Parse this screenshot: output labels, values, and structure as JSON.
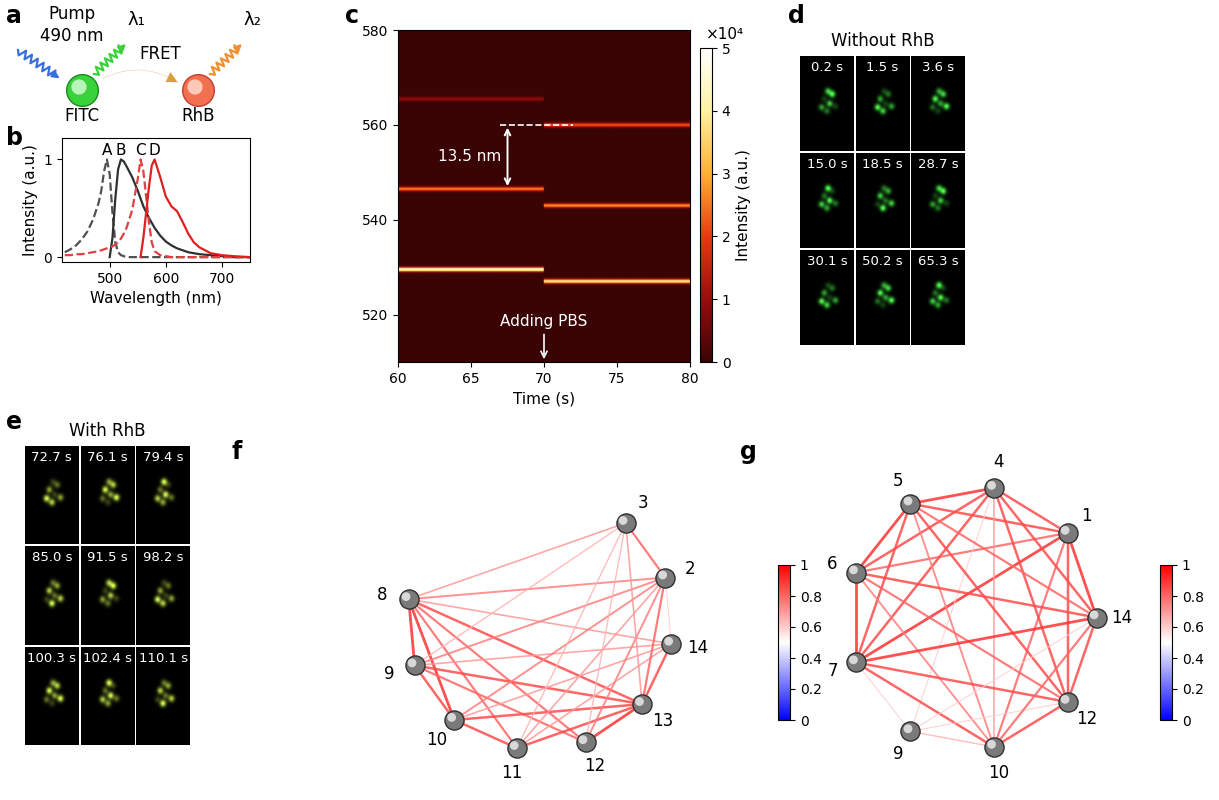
{
  "diagram": {
    "panel": "a",
    "type": "diagram",
    "pump": "Pump",
    "pump_wavelength": "490 nm",
    "donor": "FITC",
    "acceptor": "RhB",
    "transfer": "FRET",
    "emission_1": "λ₁",
    "emission_2": "λ₂"
  },
  "chart_data": [
    {
      "panel": "b",
      "type": "line",
      "xlabel": "Wavelength (nm)",
      "ylabel": "Intensity (a.u.)",
      "x": [
        420,
        430,
        440,
        450,
        460,
        470,
        480,
        485,
        490,
        495,
        500,
        505,
        510,
        515,
        520,
        525,
        530,
        540,
        550,
        555,
        560,
        570,
        575,
        580,
        590,
        600,
        610,
        620,
        630,
        640,
        650,
        660,
        680,
        700,
        720,
        750
      ],
      "series": [
        {
          "name": "A",
          "color": "#505050",
          "line_style": "dashed",
          "values": [
            0.05,
            0.08,
            0.12,
            0.18,
            0.26,
            0.38,
            0.55,
            0.68,
            0.88,
            1.0,
            0.85,
            0.45,
            0.15,
            0.05,
            0.02,
            0.01,
            0,
            0,
            0,
            0,
            0,
            0,
            0,
            0,
            0,
            0,
            0,
            0,
            0,
            0,
            0,
            0,
            0,
            0,
            0,
            0
          ]
        },
        {
          "name": "B",
          "color": "#303030",
          "line_style": "solid",
          "values": [
            null,
            null,
            null,
            null,
            null,
            null,
            null,
            null,
            null,
            null,
            0,
            0.2,
            0.6,
            0.9,
            1.0,
            0.98,
            0.93,
            0.82,
            0.68,
            0.6,
            0.52,
            0.4,
            0.35,
            0.3,
            0.22,
            0.16,
            0.12,
            0.09,
            0.07,
            0.05,
            0.04,
            0.03,
            0.02,
            0.01,
            0,
            0
          ]
        },
        {
          "name": "C",
          "color": "#e04040",
          "line_style": "dashed",
          "values": [
            0.02,
            0.02,
            0.03,
            0.03,
            0.04,
            0.05,
            0.06,
            0.07,
            0.08,
            0.09,
            0.1,
            0.11,
            0.13,
            0.15,
            0.19,
            0.24,
            0.3,
            0.48,
            0.8,
            1.0,
            0.88,
            0.35,
            0.15,
            0.06,
            0.02,
            0.01,
            0,
            0,
            0,
            0,
            0,
            0,
            0,
            0,
            0,
            0
          ]
        },
        {
          "name": "D",
          "color": "#e02020",
          "line_style": "solid",
          "values": [
            null,
            null,
            null,
            null,
            null,
            null,
            null,
            null,
            null,
            null,
            null,
            null,
            null,
            null,
            null,
            null,
            null,
            null,
            null,
            0,
            0.2,
            0.72,
            0.94,
            1.0,
            0.82,
            0.62,
            0.52,
            0.47,
            0.36,
            0.24,
            0.15,
            0.1,
            0.04,
            0.02,
            0.01,
            0
          ]
        }
      ],
      "xlim": [
        415,
        750
      ],
      "xticks": [
        500,
        600,
        700
      ],
      "ylim": [
        -0.05,
        1.22
      ],
      "yticks": [
        0,
        1
      ]
    },
    {
      "panel": "c",
      "type": "heatmap",
      "xlabel": "Time (s)",
      "xlim": [
        60,
        80
      ],
      "xticks": [
        60,
        65,
        70,
        75,
        80
      ],
      "ylim": [
        510,
        580
      ],
      "yticks": [
        520,
        540,
        560,
        580
      ],
      "event_time": 70,
      "peaks": [
        {
          "before": 529.5,
          "after": 527.0,
          "intensity_before": 48000,
          "intensity_after": 40000
        },
        {
          "before": 546.5,
          "after": 543.0,
          "intensity_before": 26000,
          "intensity_after": 28000
        },
        {
          "before": 565.5,
          "after": 560.0,
          "intensity_before": 9000,
          "intensity_after": 22000
        }
      ],
      "shift_label": "13.5 nm",
      "event_label": "Adding PBS",
      "colorbar": {
        "label": "Intensity (a.u.)",
        "range": [
          0,
          50000
        ],
        "multiplier": "×10⁴",
        "ticks": [
          {
            "value": 0,
            "label": "0"
          },
          {
            "value": 10000,
            "label": "1"
          },
          {
            "value": 20000,
            "label": "2"
          },
          {
            "value": 30000,
            "label": "3"
          },
          {
            "value": 40000,
            "label": "4"
          },
          {
            "value": 50000,
            "label": "5"
          }
        ]
      }
    }
  ],
  "image_grids": [
    {
      "panel": "d",
      "type": "image_grid",
      "title": "Without RhB",
      "color": "#4cff4c",
      "frames": [
        "0.2 s",
        "1.5 s",
        "3.6 s",
        "15.0 s",
        "18.5 s",
        "28.7 s",
        "30.1 s",
        "50.2 s",
        "65.3 s"
      ]
    },
    {
      "panel": "e",
      "type": "image_grid",
      "title": "With RhB",
      "color": "#d8ff50",
      "frames": [
        "72.7 s",
        "76.1 s",
        "79.4 s",
        "85.0 s",
        "91.5 s",
        "98.2 s",
        "100.3 s",
        "102.4 s",
        "110.1 s"
      ]
    }
  ],
  "networks": [
    {
      "panel": "f",
      "type": "network",
      "nodes": [
        "3",
        "2",
        "14",
        "13",
        "12",
        "11",
        "10",
        "9",
        "8"
      ],
      "edges": [
        [
          "8",
          "3",
          0.7
        ],
        [
          "8",
          "2",
          0.75
        ],
        [
          "8",
          "14",
          0.7
        ],
        [
          "8",
          "13",
          0.85
        ],
        [
          "8",
          "12",
          0.8
        ],
        [
          "8",
          "11",
          0.8
        ],
        [
          "8",
          "10",
          0.9
        ],
        [
          "8",
          "9",
          0.9
        ],
        [
          "9",
          "2",
          0.75
        ],
        [
          "9",
          "13",
          0.85
        ],
        [
          "9",
          "12",
          0.8
        ],
        [
          "9",
          "10",
          0.85
        ],
        [
          "9",
          "3",
          0.65
        ],
        [
          "9",
          "14",
          0.7
        ],
        [
          "10",
          "2",
          0.75
        ],
        [
          "10",
          "13",
          0.85
        ],
        [
          "10",
          "11",
          0.85
        ],
        [
          "10",
          "14",
          0.7
        ],
        [
          "11",
          "2",
          0.7
        ],
        [
          "11",
          "13",
          0.85
        ],
        [
          "11",
          "14",
          0.7
        ],
        [
          "11",
          "3",
          0.65
        ],
        [
          "12",
          "2",
          0.75
        ],
        [
          "12",
          "13",
          0.9
        ],
        [
          "12",
          "3",
          0.65
        ],
        [
          "13",
          "2",
          0.8
        ],
        [
          "13",
          "14",
          0.85
        ],
        [
          "13",
          "3",
          0.7
        ],
        [
          "14",
          "2",
          0.6
        ],
        [
          "2",
          "3",
          0.8
        ]
      ],
      "colorbar": {
        "range": [
          0,
          1
        ],
        "ticks": [
          0,
          0.2,
          0.4,
          0.6,
          0.8,
          1
        ]
      }
    },
    {
      "panel": "g",
      "type": "network",
      "nodes": [
        "4",
        "5",
        "6",
        "7",
        "9",
        "10",
        "12",
        "14",
        "1"
      ],
      "edges": [
        [
          "1",
          "4",
          0.85
        ],
        [
          "1",
          "5",
          0.85
        ],
        [
          "1",
          "6",
          0.8
        ],
        [
          "1",
          "7",
          0.9
        ],
        [
          "1",
          "10",
          0.8
        ],
        [
          "1",
          "12",
          0.85
        ],
        [
          "1",
          "14",
          0.9
        ],
        [
          "4",
          "5",
          0.9
        ],
        [
          "4",
          "6",
          0.85
        ],
        [
          "4",
          "7",
          0.85
        ],
        [
          "4",
          "10",
          0.7
        ],
        [
          "4",
          "12",
          0.85
        ],
        [
          "4",
          "14",
          0.85
        ],
        [
          "4",
          "9",
          0.6
        ],
        [
          "5",
          "6",
          0.9
        ],
        [
          "5",
          "7",
          0.85
        ],
        [
          "5",
          "12",
          0.85
        ],
        [
          "5",
          "14",
          0.8
        ],
        [
          "5",
          "10",
          0.75
        ],
        [
          "6",
          "7",
          0.9
        ],
        [
          "6",
          "12",
          0.8
        ],
        [
          "6",
          "14",
          0.85
        ],
        [
          "6",
          "10",
          0.75
        ],
        [
          "7",
          "14",
          0.9
        ],
        [
          "7",
          "12",
          0.85
        ],
        [
          "7",
          "10",
          0.85
        ],
        [
          "7",
          "9",
          0.6
        ],
        [
          "9",
          "10",
          0.65
        ],
        [
          "9",
          "14",
          0.6
        ],
        [
          "9",
          "12",
          0.6
        ],
        [
          "10",
          "12",
          0.85
        ],
        [
          "10",
          "14",
          0.8
        ],
        [
          "12",
          "14",
          0.85
        ]
      ],
      "colorbar": {
        "range": [
          0,
          1
        ],
        "ticks": [
          0,
          0.2,
          0.4,
          0.6,
          0.8,
          1
        ]
      }
    }
  ]
}
